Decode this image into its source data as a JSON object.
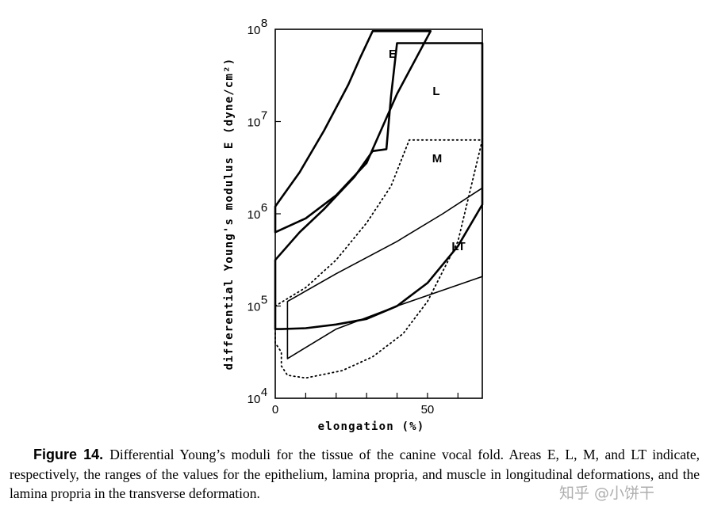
{
  "chart_data": {
    "type": "area",
    "title": "",
    "xlabel": "elongation (%)",
    "ylabel": "differential Young's modulus E (dyne/cm²)",
    "xlim": [
      0,
      68
    ],
    "ylim_log10": [
      4,
      8
    ],
    "y_scale": "log",
    "x_ticks": [
      0,
      50
    ],
    "x_tick_labels": [
      "0",
      "50"
    ],
    "y_ticks": [
      {
        "base": "10",
        "exp": "4"
      },
      {
        "base": "10",
        "exp": "5"
      },
      {
        "base": "10",
        "exp": "6"
      },
      {
        "base": "10",
        "exp": "7"
      },
      {
        "base": "10",
        "exp": "8"
      }
    ],
    "grid": false,
    "regions": [
      {
        "name": "E",
        "line_style": "bold",
        "boundary": [
          [
            0,
            6.08
          ],
          [
            8,
            6.45
          ],
          [
            16,
            6.9
          ],
          [
            24,
            7.4
          ],
          [
            28,
            7.7
          ],
          [
            32,
            7.98
          ],
          [
            51,
            7.98
          ],
          [
            40,
            7.3
          ],
          [
            30,
            6.55
          ],
          [
            20,
            6.2
          ],
          [
            10,
            5.95
          ],
          [
            0,
            5.8
          ]
        ]
      },
      {
        "name": "L",
        "line_style": "bold",
        "boundary": [
          [
            36.5,
            6.7
          ],
          [
            38,
            7.27
          ],
          [
            40,
            7.85
          ],
          [
            68,
            7.85
          ],
          [
            68,
            6.1
          ],
          [
            60,
            5.65
          ],
          [
            50,
            5.25
          ],
          [
            40,
            5.0
          ],
          [
            30,
            4.86
          ],
          [
            20,
            4.8
          ],
          [
            10,
            4.76
          ],
          [
            2,
            4.75
          ],
          [
            0,
            4.75
          ],
          [
            0,
            5.5
          ],
          [
            8,
            5.8
          ],
          [
            16,
            6.05
          ],
          [
            26,
            6.4
          ],
          [
            32,
            6.68
          ],
          [
            36.5,
            6.7
          ]
        ]
      },
      {
        "name": "M",
        "line_style": "dotted",
        "boundary": [
          [
            0,
            5.0
          ],
          [
            10,
            5.2
          ],
          [
            20,
            5.5
          ],
          [
            30,
            5.9
          ],
          [
            38,
            6.3
          ],
          [
            44,
            6.8
          ],
          [
            68,
            6.8
          ],
          [
            60,
            5.7
          ],
          [
            50,
            5.05
          ],
          [
            42,
            4.7
          ],
          [
            32,
            4.45
          ],
          [
            22,
            4.3
          ],
          [
            10,
            4.22
          ],
          [
            4,
            4.25
          ],
          [
            2,
            4.35
          ],
          [
            2,
            4.5
          ],
          [
            0,
            4.6
          ]
        ]
      },
      {
        "name": "LT",
        "line_style": "thin",
        "boundary": [
          [
            4,
            5.05
          ],
          [
            20,
            5.35
          ],
          [
            40,
            5.7
          ],
          [
            55,
            6.0
          ],
          [
            68,
            6.28
          ],
          [
            68,
            5.32
          ],
          [
            40,
            5.0
          ],
          [
            20,
            4.75
          ],
          [
            4,
            4.43
          ],
          [
            4,
            4.8
          ]
        ]
      }
    ]
  },
  "caption": {
    "figure_label": "Figure 14.",
    "text": "Differential Young’s moduli for the tissue of the canine vocal fold. Areas E, L, M, and LT indicate, respectively, the ranges of the values for the epithelium, lamina propria, and muscle in longitudinal deformations, and the lamina propria in the transverse deformation."
  },
  "watermark": "知乎 @小饼干"
}
